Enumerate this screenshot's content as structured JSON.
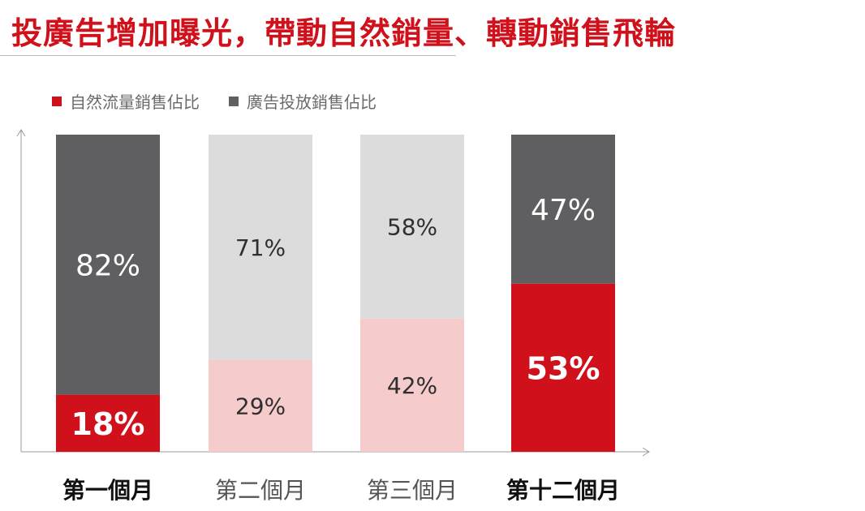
{
  "title": "投廣告增加曝光，帶動自然銷量、轉動銷售飛輪",
  "colors": {
    "title": "#d0101b",
    "organic_emph": "#d0101b",
    "ads_emph": "#5f5f62",
    "organic_muted": "#f6cbcc",
    "ads_muted": "#dcdcdc",
    "axis": "#9a9a9a"
  },
  "chart_data": {
    "type": "bar",
    "stacked": true,
    "percent": true,
    "categories": [
      "第一個月",
      "第二個月",
      "第三個月",
      "第十二個月"
    ],
    "highlighted": [
      true,
      false,
      false,
      true
    ],
    "series": [
      {
        "name": "自然流量銷售佔比",
        "values": [
          18,
          29,
          42,
          53
        ],
        "labels": [
          "18%",
          "29%",
          "42%",
          "53%"
        ]
      },
      {
        "name": "廣告投放銷售佔比",
        "values": [
          82,
          71,
          58,
          47
        ],
        "labels": [
          "82%",
          "71%",
          "58%",
          "47%"
        ]
      }
    ],
    "ylim": [
      0,
      100
    ],
    "legend_position": "top-left",
    "grid": false
  }
}
